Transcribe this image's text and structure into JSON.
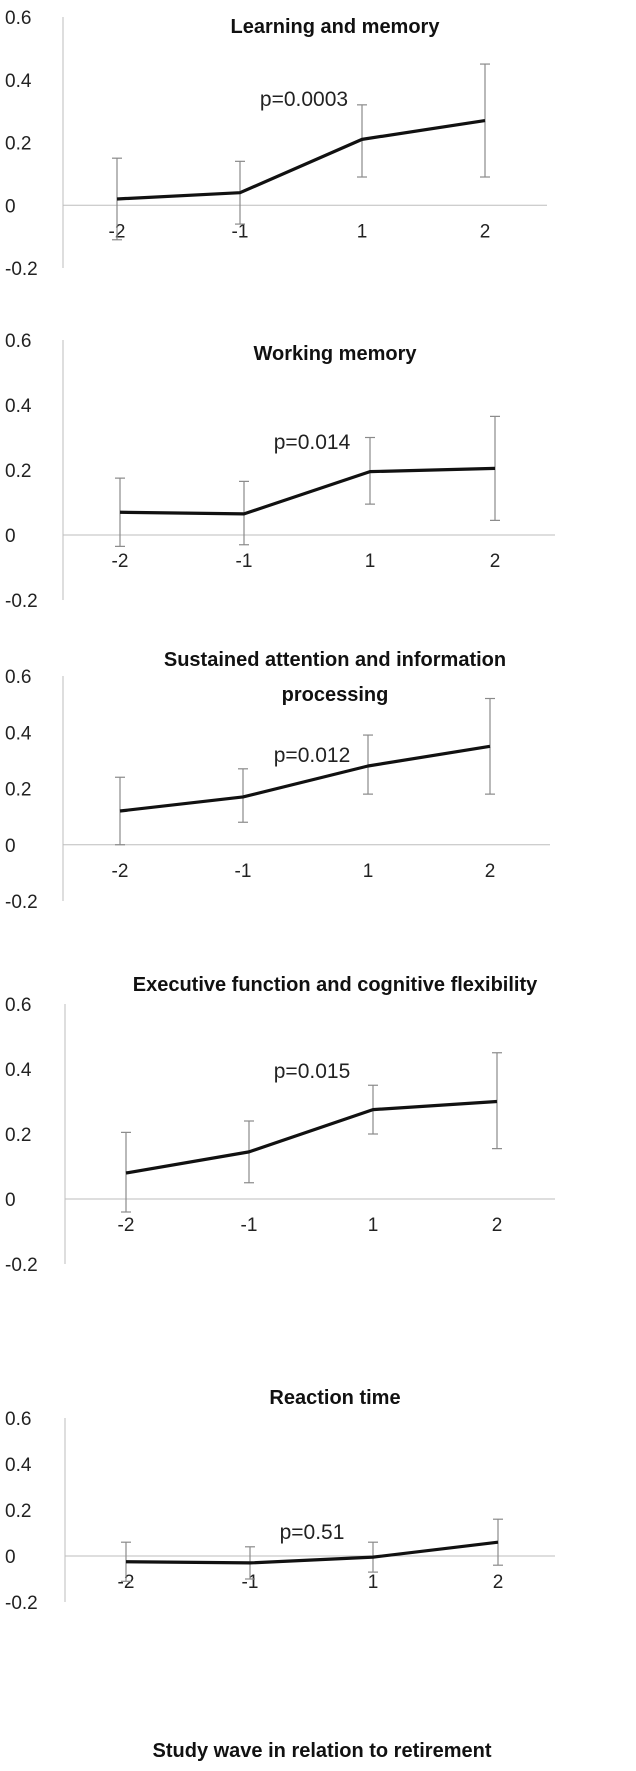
{
  "figure": {
    "xlabel": "Study wave in relation to retirement"
  },
  "chart_data": [
    {
      "type": "line",
      "title": [
        "Learning and memory"
      ],
      "categories": [
        "-2",
        "-1",
        "1",
        "2"
      ],
      "values": [
        0.02,
        0.04,
        0.21,
        0.27
      ],
      "error_low": [
        -0.11,
        -0.06,
        0.09,
        0.09
      ],
      "error_high": [
        0.15,
        0.14,
        0.32,
        0.45
      ],
      "annotation": "p=0.0003",
      "ylim": [
        -0.2,
        0.6
      ],
      "yticks": [
        "0.6",
        "0.4",
        "0.2",
        "0",
        "-0.2"
      ],
      "grid": false
    },
    {
      "type": "line",
      "title": [
        "Working memory"
      ],
      "categories": [
        "-2",
        "-1",
        "1",
        "2"
      ],
      "values": [
        0.07,
        0.065,
        0.195,
        0.205
      ],
      "error_low": [
        -0.035,
        -0.03,
        0.095,
        0.045
      ],
      "error_high": [
        0.175,
        0.165,
        0.3,
        0.365
      ],
      "annotation": "p=0.014",
      "ylim": [
        -0.2,
        0.6
      ],
      "yticks": [
        "0.6",
        "0.4",
        "0.2",
        "0",
        "-0.2"
      ],
      "grid": false
    },
    {
      "type": "line",
      "title": [
        "Sustained attention and information",
        "processing"
      ],
      "categories": [
        "-2",
        "-1",
        "1",
        "2"
      ],
      "values": [
        0.12,
        0.17,
        0.28,
        0.35
      ],
      "error_low": [
        0.0,
        0.08,
        0.18,
        0.18
      ],
      "error_high": [
        0.24,
        0.27,
        0.39,
        0.52
      ],
      "annotation": "p=0.012",
      "ylim": [
        -0.2,
        0.6
      ],
      "yticks": [
        "0.6",
        "0.4",
        "0.2",
        "0",
        "-0.2"
      ],
      "grid": false
    },
    {
      "type": "line",
      "title": [
        "Executive function and cognitive flexibility"
      ],
      "categories": [
        "-2",
        "-1",
        "1",
        "2"
      ],
      "values": [
        0.08,
        0.145,
        0.275,
        0.3
      ],
      "error_low": [
        -0.04,
        0.05,
        0.2,
        0.155
      ],
      "error_high": [
        0.205,
        0.24,
        0.35,
        0.45
      ],
      "annotation": "p=0.015",
      "ylim": [
        -0.2,
        0.6
      ],
      "yticks": [
        "0.6",
        "0.4",
        "0.2",
        "0",
        "-0.2"
      ],
      "grid": false
    },
    {
      "type": "line",
      "title": [
        "Reaction time"
      ],
      "categories": [
        "-2",
        "-1",
        "1",
        "2"
      ],
      "values": [
        -0.025,
        -0.03,
        -0.005,
        0.06
      ],
      "error_low": [
        -0.11,
        -0.1,
        -0.07,
        -0.04
      ],
      "error_high": [
        0.06,
        0.04,
        0.06,
        0.16
      ],
      "annotation": "p=0.51",
      "ylim": [
        -0.2,
        0.6
      ],
      "yticks": [
        "0.6",
        "0.4",
        "0.2",
        "0",
        "-0.2"
      ],
      "grid": false
    }
  ]
}
